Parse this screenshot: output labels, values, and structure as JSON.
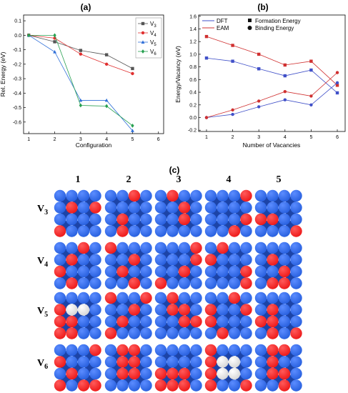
{
  "chart_data": [
    {
      "panel": "(a)",
      "type": "line",
      "xlabel": "Configuration",
      "ylabel": "Rel. Energy (eV)",
      "xlim": [
        0.8,
        6.2
      ],
      "ylim": [
        -0.68,
        0.14
      ],
      "xticks": [
        1,
        2,
        3,
        4,
        5,
        6
      ],
      "yticks": [
        0.1,
        0.0,
        -0.1,
        -0.2,
        -0.3,
        -0.4,
        -0.5,
        -0.6
      ],
      "ytick_labels": [
        "0.1",
        "0.0",
        "-0.1",
        "-0.2",
        "-0.3",
        "-0.4",
        "-0.5",
        "-0.6"
      ],
      "legend_position": "top-right",
      "series": [
        {
          "name": "V",
          "sub": "3",
          "color": "#555555",
          "marker": "square",
          "x": [
            1,
            2,
            3,
            4,
            5
          ],
          "values": [
            0.0,
            -0.045,
            -0.105,
            -0.135,
            -0.23
          ]
        },
        {
          "name": "V",
          "sub": "4",
          "color": "#e03030",
          "marker": "circle",
          "x": [
            1,
            2,
            3,
            4,
            5
          ],
          "values": [
            0.0,
            -0.02,
            -0.13,
            -0.2,
            -0.265
          ]
        },
        {
          "name": "V",
          "sub": "5",
          "color": "#2f6fd8",
          "marker": "triangle",
          "x": [
            1,
            2,
            3,
            4,
            5
          ],
          "values": [
            0.0,
            -0.115,
            -0.45,
            -0.45,
            -0.66
          ]
        },
        {
          "name": "V",
          "sub": "6",
          "color": "#27a050",
          "marker": "diamond",
          "x": [
            1,
            2,
            3,
            4,
            5
          ],
          "values": [
            0.0,
            0.0,
            -0.485,
            -0.49,
            -0.625
          ]
        }
      ]
    },
    {
      "panel": "(b)",
      "type": "line",
      "xlabel": "Number of Vacancies",
      "ylabel": "Energy/Vacancy (eV)",
      "xlim": [
        0.7,
        6.3
      ],
      "ylim": [
        -0.22,
        1.62
      ],
      "xticks": [
        1,
        2,
        3,
        4,
        5,
        6
      ],
      "yticks": [
        -0.2,
        0.0,
        0.2,
        0.4,
        0.6,
        0.8,
        1.0,
        1.2,
        1.4,
        1.6
      ],
      "ytick_labels": [
        "-0.2",
        "0.0",
        "0.2",
        "0.4",
        "0.6",
        "0.8",
        "1.0",
        "1.2",
        "1.4",
        "1.6"
      ],
      "legend_position": "top",
      "legend_methods": [
        "DFT",
        "EAM"
      ],
      "legend_quantities": [
        "Formation Energy",
        "Binding Energy"
      ],
      "series": [
        {
          "name": "DFT Formation Energy",
          "color": "#4050c8",
          "marker": "square",
          "x": [
            1,
            2,
            3,
            4,
            5,
            6
          ],
          "values": [
            0.94,
            0.89,
            0.77,
            0.66,
            0.75,
            0.39
          ]
        },
        {
          "name": "EAM Formation Energy",
          "color": "#d03030",
          "marker": "square",
          "x": [
            1,
            2,
            3,
            4,
            5,
            6
          ],
          "values": [
            1.28,
            1.14,
            1.0,
            0.83,
            0.89,
            0.51
          ]
        },
        {
          "name": "DFT Binding Energy",
          "color": "#4050c8",
          "marker": "circle",
          "x": [
            1,
            2,
            3,
            4,
            5,
            6
          ],
          "values": [
            0.0,
            0.05,
            0.17,
            0.28,
            0.2,
            0.55
          ]
        },
        {
          "name": "EAM Binding Energy",
          "color": "#d03030",
          "marker": "circle",
          "x": [
            1,
            2,
            3,
            4,
            5,
            6
          ],
          "values": [
            0.0,
            0.12,
            0.26,
            0.41,
            0.34,
            0.71
          ]
        }
      ]
    }
  ],
  "panel_c": {
    "label": "(c)",
    "columns": [
      "1",
      "2",
      "3",
      "4",
      "5"
    ],
    "rows": [
      {
        "name": "V",
        "sub": "3"
      },
      {
        "name": "V",
        "sub": "4"
      },
      {
        "name": "V",
        "sub": "5"
      },
      {
        "name": "V",
        "sub": "6"
      }
    ],
    "colors": {
      "atom": "#2a62e0",
      "vacancy": "#ee1c1c",
      "defect": "#d8d8d8"
    }
  }
}
